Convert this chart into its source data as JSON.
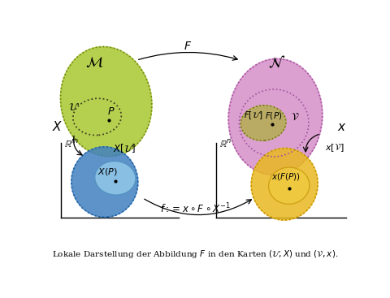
{
  "caption": "Lokale Darstellung der Abbildung $F$ in den Karten $(\\mathcal{U}, X)$ und $(\\mathcal{V}, x)$.",
  "colors": {
    "M_blob": "#a8c830",
    "N_blob": "#d080c0",
    "FU_inner": "#b0b040",
    "XU_outer": "#4080c0",
    "XP_inner": "#90c8e8",
    "xV_outer": "#e8b820",
    "xFP_inner": "#e8b820"
  },
  "background": "#ffffff"
}
